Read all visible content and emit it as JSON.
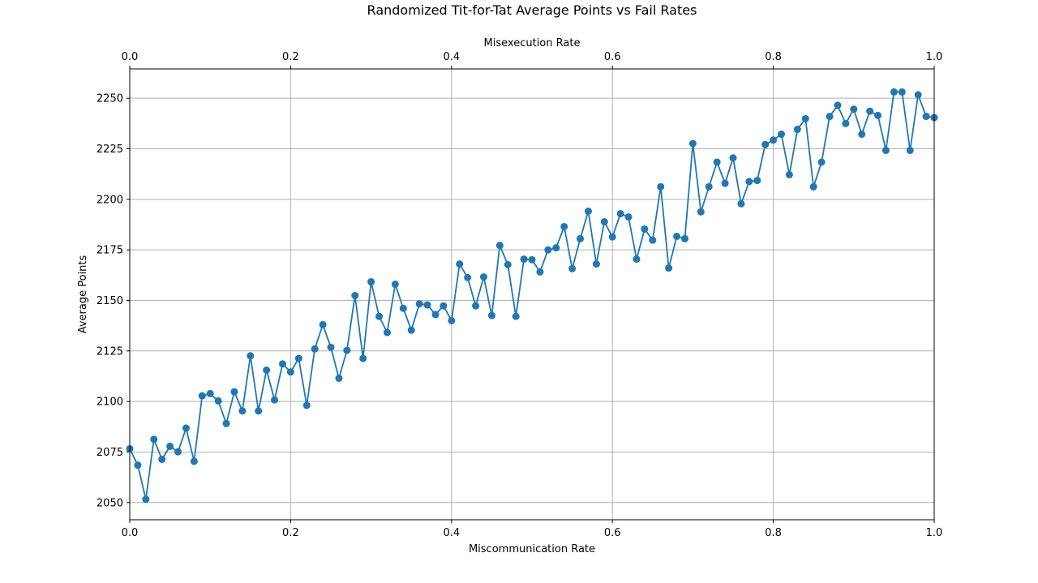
{
  "chart_data": {
    "type": "line",
    "title": "Randomized Tit-for-Tat Average Points vs Fail Rates",
    "xlabel": "Miscommunication Rate",
    "x2label": "Misexecution Rate",
    "ylabel": "Average Points",
    "xlim": [
      0,
      1
    ],
    "ylim": [
      2041.5,
      2264.5
    ],
    "grid": true,
    "x_ticks": [
      0.0,
      0.2,
      0.4,
      0.6,
      0.8,
      1.0
    ],
    "x_tick_labels": [
      "0.0",
      "0.2",
      "0.4",
      "0.6",
      "0.8",
      "1.0"
    ],
    "x2_ticks": [
      0.0,
      0.2,
      0.4,
      0.6,
      0.8,
      1.0
    ],
    "x2_tick_labels": [
      "0.0",
      "0.2",
      "0.4",
      "0.6",
      "0.8",
      "1.0"
    ],
    "y_ticks": [
      2050,
      2075,
      2100,
      2125,
      2150,
      2175,
      2200,
      2225,
      2250
    ],
    "y_tick_labels": [
      "2050",
      "2075",
      "2100",
      "2125",
      "2150",
      "2175",
      "2200",
      "2225",
      "2250"
    ],
    "series": [
      {
        "color": "#1f77b4",
        "marker": "circle",
        "x": [
          0.0,
          0.01,
          0.02,
          0.03,
          0.04,
          0.05,
          0.06,
          0.07,
          0.08,
          0.09,
          0.1,
          0.11,
          0.12,
          0.13,
          0.14,
          0.15,
          0.16,
          0.17,
          0.18,
          0.19,
          0.2,
          0.21,
          0.22,
          0.23,
          0.24,
          0.25,
          0.26,
          0.27,
          0.28,
          0.29,
          0.3,
          0.31,
          0.32,
          0.33,
          0.34,
          0.35,
          0.36,
          0.37,
          0.38,
          0.39,
          0.4,
          0.41,
          0.42,
          0.43,
          0.44,
          0.45,
          0.46,
          0.47,
          0.48,
          0.49,
          0.5,
          0.51,
          0.52,
          0.53,
          0.54,
          0.55,
          0.56,
          0.57,
          0.58,
          0.59,
          0.6,
          0.61,
          0.62,
          0.63,
          0.64,
          0.65,
          0.66,
          0.67,
          0.68,
          0.69,
          0.7,
          0.71,
          0.72,
          0.73,
          0.74,
          0.75,
          0.76,
          0.77,
          0.78,
          0.79,
          0.8,
          0.81,
          0.82,
          0.83,
          0.84,
          0.85,
          0.86,
          0.87,
          0.88,
          0.89,
          0.9,
          0.91,
          0.92,
          0.93,
          0.94,
          0.95,
          0.96,
          0.97,
          0.98,
          0.99,
          1.0
        ],
        "values": [
          2076.6,
          2068.5,
          2051.6,
          2081.3,
          2071.4,
          2077.8,
          2075.1,
          2086.8,
          2070.4,
          2102.8,
          2103.9,
          2100.3,
          2089.1,
          2104.8,
          2095.3,
          2122.6,
          2095.3,
          2115.5,
          2100.8,
          2118.6,
          2114.6,
          2121.3,
          2098.1,
          2126.0,
          2138.0,
          2126.8,
          2111.5,
          2125.3,
          2152.4,
          2121.3,
          2159.2,
          2142.1,
          2134.1,
          2158.0,
          2146.1,
          2135.3,
          2148.3,
          2147.8,
          2143.0,
          2147.3,
          2140.0,
          2168.0,
          2161.3,
          2147.3,
          2161.6,
          2142.5,
          2177.2,
          2167.7,
          2142.1,
          2170.4,
          2170.1,
          2164.1,
          2175.0,
          2176.0,
          2186.5,
          2165.7,
          2180.5,
          2194.1,
          2168.0,
          2188.9,
          2181.4,
          2192.9,
          2191.3,
          2170.4,
          2185.3,
          2179.8,
          2206.2,
          2166.0,
          2181.7,
          2180.5,
          2227.6,
          2193.8,
          2206.2,
          2218.4,
          2207.9,
          2220.5,
          2197.8,
          2208.8,
          2209.3,
          2227.1,
          2229.3,
          2232.2,
          2212.2,
          2234.6,
          2239.9,
          2206.2,
          2218.4,
          2241.0,
          2246.5,
          2237.5,
          2244.6,
          2232.2,
          2243.6,
          2241.5,
          2224.2,
          2253.1,
          2253.1,
          2224.2,
          2251.7,
          2241.0,
          2240.4
        ]
      }
    ]
  }
}
